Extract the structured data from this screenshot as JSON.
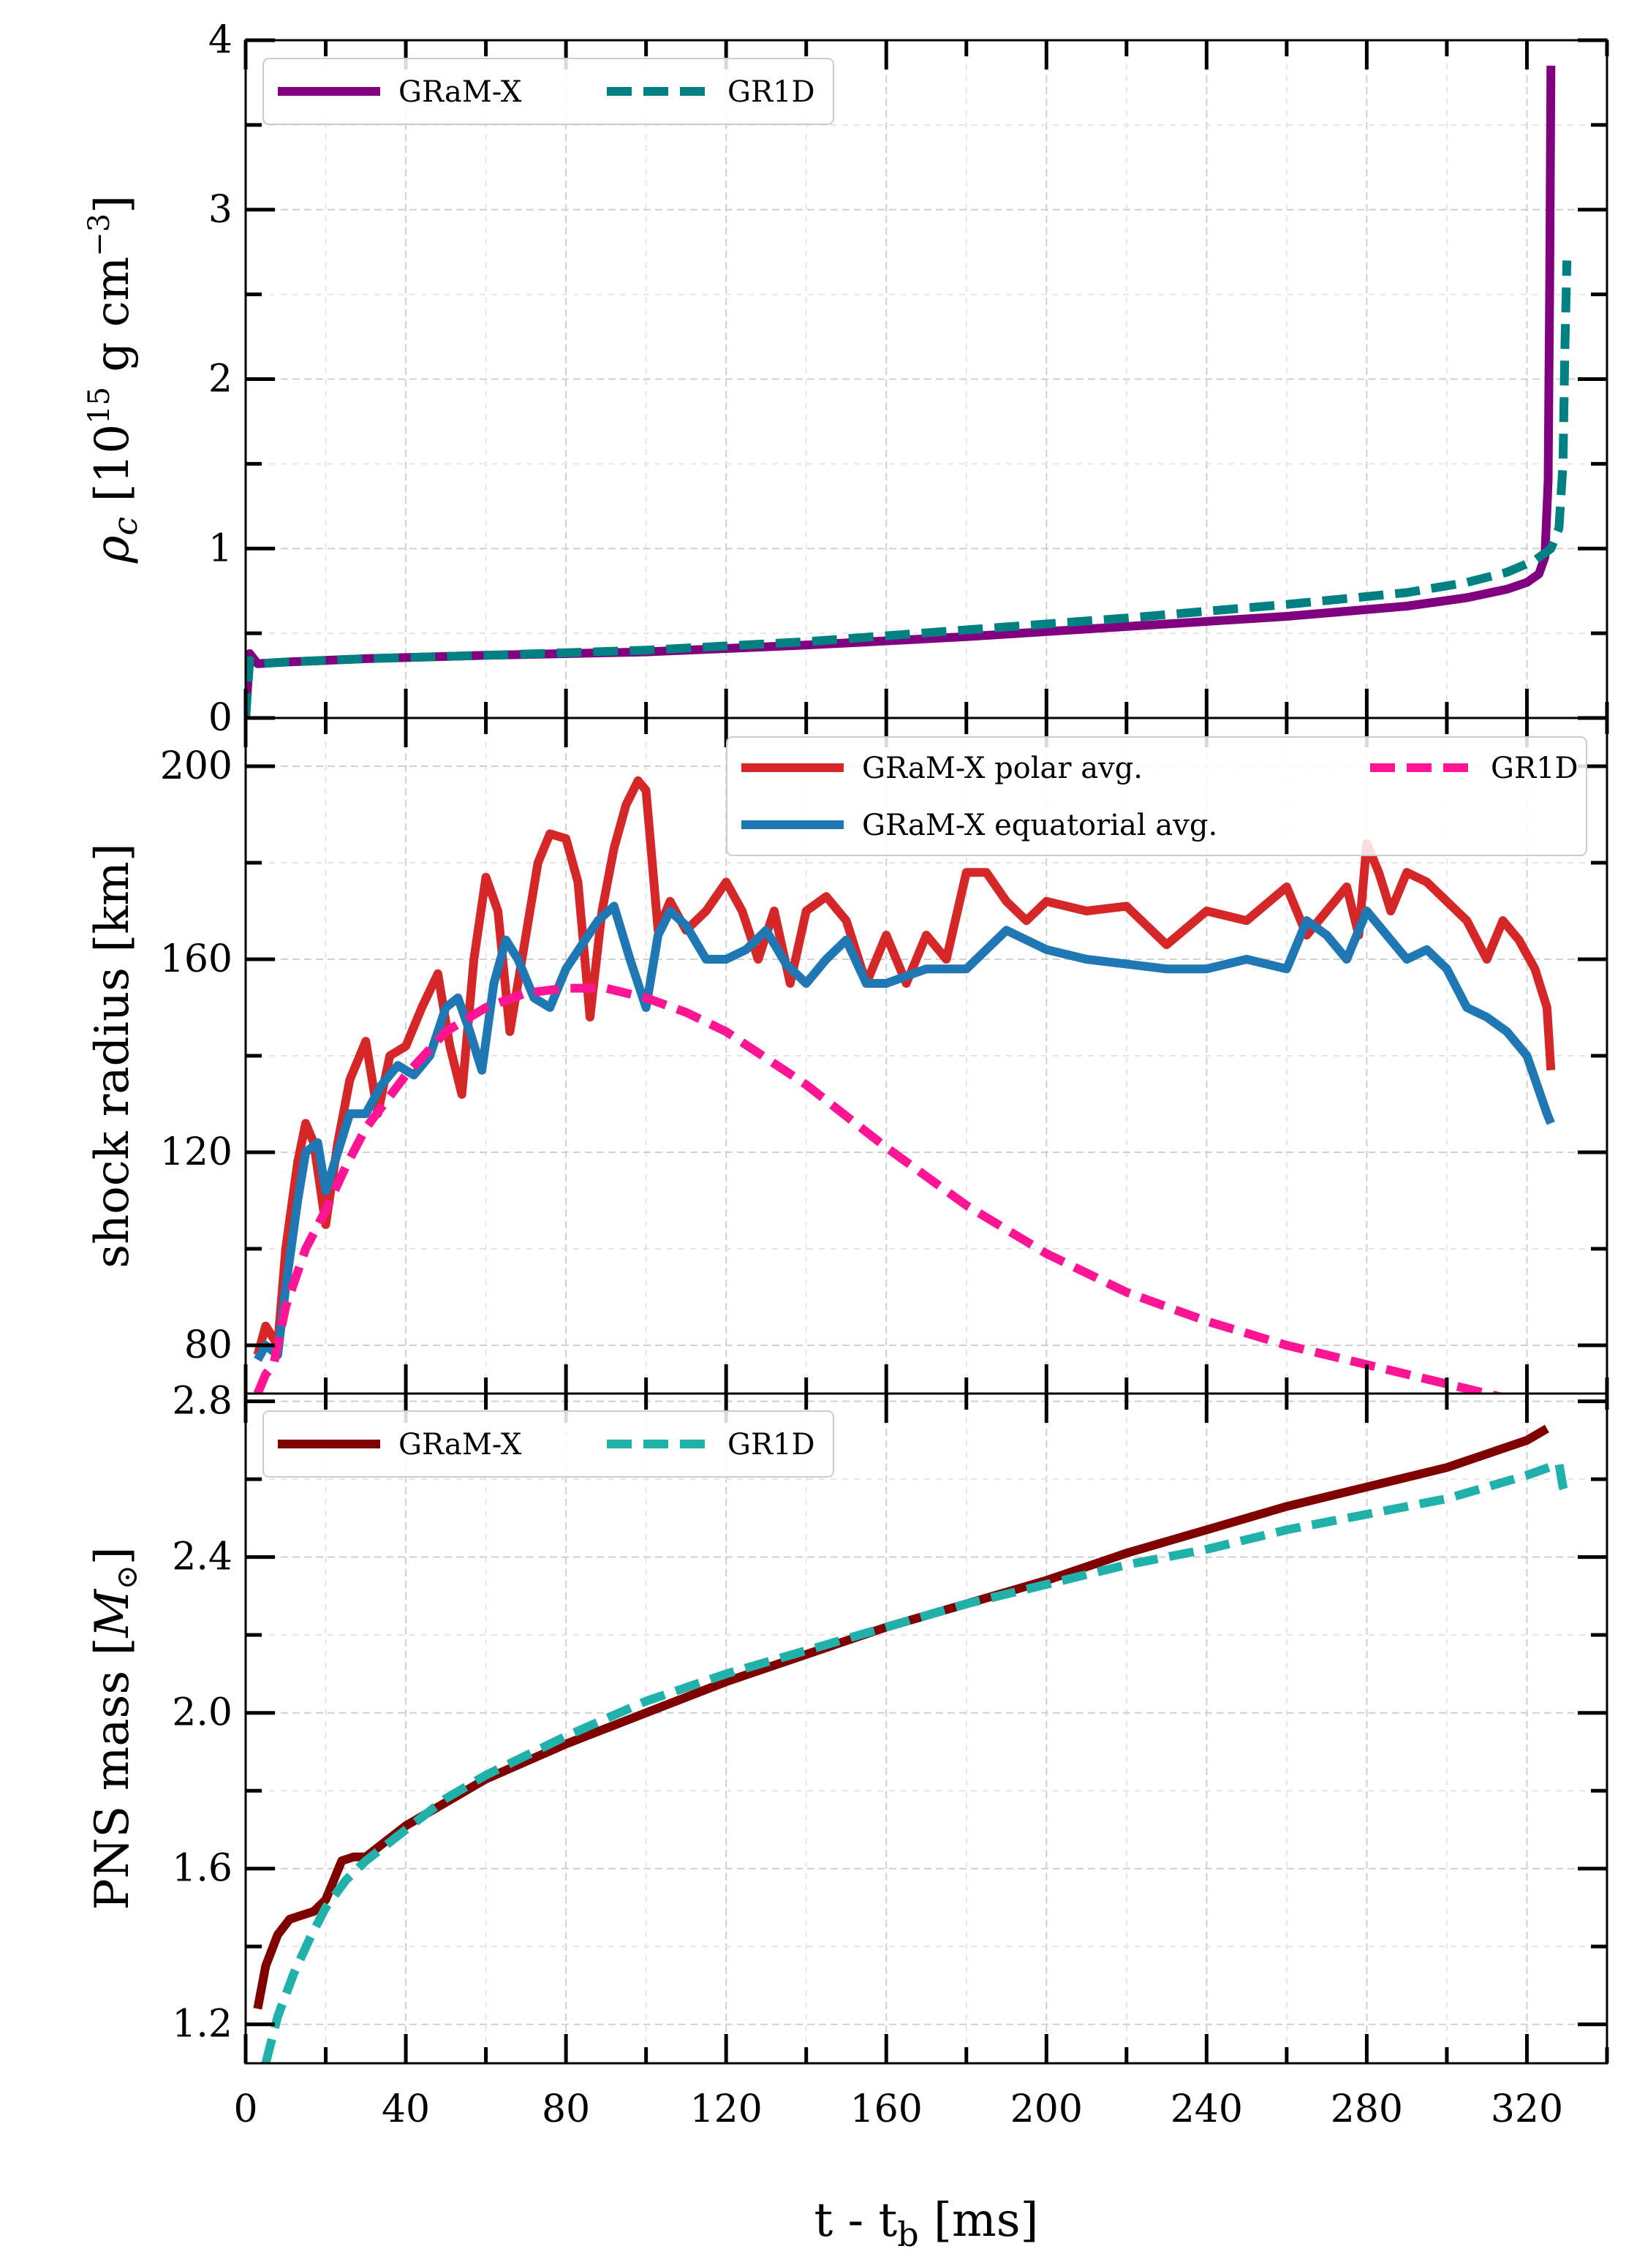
{
  "chart_data": [
    {
      "type": "line",
      "ylabel": "ρ_c [10^15 g cm^-3]",
      "ylim": [
        0,
        4
      ],
      "xlim": [
        0,
        340
      ],
      "yticks": [
        0,
        1,
        2,
        3,
        4
      ],
      "ytick_labels": [
        "0",
        "1",
        "2",
        "3",
        "4"
      ],
      "grid": true,
      "legend_position": "top-left",
      "series": [
        {
          "name": "GRaM-X",
          "color": "#800080",
          "style": "solid",
          "x": [
            0,
            1,
            3,
            10,
            30,
            60,
            100,
            140,
            180,
            220,
            260,
            290,
            305,
            315,
            320,
            323,
            324.5,
            325.3,
            325.7,
            326
          ],
          "y": [
            0.0,
            0.38,
            0.32,
            0.33,
            0.35,
            0.37,
            0.39,
            0.43,
            0.48,
            0.54,
            0.6,
            0.66,
            0.71,
            0.76,
            0.8,
            0.85,
            0.95,
            1.4,
            2.6,
            3.85
          ]
        },
        {
          "name": "GR1D",
          "color": "#008080",
          "style": "dashed",
          "x": [
            0,
            1,
            3,
            10,
            30,
            60,
            100,
            140,
            180,
            220,
            260,
            290,
            305,
            315,
            322,
            326,
            328,
            329,
            329.5,
            330
          ],
          "y": [
            0.0,
            0.34,
            0.32,
            0.33,
            0.35,
            0.37,
            0.4,
            0.45,
            0.52,
            0.59,
            0.67,
            0.74,
            0.8,
            0.86,
            0.93,
            1.0,
            1.12,
            1.5,
            2.2,
            2.7
          ]
        }
      ]
    },
    {
      "type": "line",
      "ylabel": "shock radius [km]",
      "ylim": [
        70,
        210
      ],
      "xlim": [
        0,
        340
      ],
      "yticks": [
        80,
        120,
        160,
        200
      ],
      "ytick_labels": [
        "80",
        "120",
        "160",
        "200"
      ],
      "grid": true,
      "legend_position": "top-right",
      "series": [
        {
          "name": "GRaM-X polar avg.",
          "color": "#d62728",
          "style": "solid",
          "x": [
            3,
            5,
            8,
            10,
            13,
            15,
            17,
            20,
            23,
            26,
            30,
            33,
            36,
            40,
            44,
            48,
            51,
            54,
            57,
            60,
            63,
            66,
            70,
            73,
            76,
            80,
            83,
            86,
            89,
            92,
            95,
            98,
            100,
            103,
            106,
            110,
            115,
            120,
            124,
            128,
            132,
            136,
            140,
            145,
            150,
            155,
            160,
            165,
            170,
            175,
            180,
            185,
            190,
            195,
            200,
            210,
            220,
            230,
            240,
            250,
            260,
            265,
            270,
            275,
            278,
            280,
            283,
            286,
            290,
            295,
            300,
            305,
            310,
            314,
            318,
            322,
            325,
            326
          ],
          "y": [
            78,
            84,
            80,
            100,
            118,
            126,
            122,
            105,
            122,
            135,
            143,
            128,
            140,
            142,
            150,
            157,
            142,
            132,
            160,
            177,
            170,
            145,
            165,
            180,
            186,
            185,
            176,
            148,
            170,
            183,
            192,
            197,
            195,
            166,
            172,
            166,
            170,
            176,
            170,
            160,
            170,
            155,
            170,
            173,
            168,
            155,
            165,
            155,
            165,
            160,
            178,
            178,
            172,
            168,
            172,
            170,
            171,
            163,
            170,
            168,
            175,
            165,
            170,
            175,
            165,
            184,
            178,
            170,
            178,
            176,
            172,
            168,
            160,
            168,
            164,
            158,
            150,
            137
          ]
        },
        {
          "name": "GRaM-X equatorial avg.",
          "color": "#1f77b4",
          "style": "solid",
          "x": [
            3,
            5,
            8,
            10,
            13,
            15,
            18,
            20,
            23,
            26,
            30,
            34,
            38,
            42,
            46,
            50,
            53,
            56,
            59,
            62,
            65,
            68,
            72,
            76,
            80,
            84,
            88,
            92,
            96,
            100,
            103,
            106,
            110,
            115,
            120,
            125,
            130,
            135,
            140,
            145,
            150,
            155,
            160,
            170,
            180,
            190,
            200,
            210,
            220,
            230,
            240,
            250,
            260,
            265,
            270,
            275,
            280,
            285,
            290,
            295,
            300,
            305,
            310,
            315,
            320,
            325,
            326
          ],
          "y": [
            77,
            80,
            78,
            92,
            110,
            120,
            122,
            112,
            120,
            128,
            128,
            134,
            138,
            136,
            140,
            150,
            152,
            145,
            137,
            155,
            164,
            160,
            152,
            150,
            158,
            163,
            168,
            171,
            160,
            150,
            165,
            170,
            167,
            160,
            160,
            162,
            166,
            159,
            155,
            160,
            164,
            155,
            155,
            158,
            158,
            166,
            162,
            160,
            159,
            158,
            158,
            160,
            158,
            168,
            165,
            160,
            170,
            165,
            160,
            162,
            158,
            150,
            148,
            145,
            140,
            128,
            126
          ]
        },
        {
          "name": "GR1D",
          "color": "#ff1493",
          "style": "dashed",
          "x": [
            3,
            5,
            7,
            10,
            15,
            20,
            25,
            30,
            40,
            50,
            60,
            70,
            80,
            90,
            100,
            110,
            120,
            140,
            160,
            180,
            200,
            220,
            240,
            260,
            280,
            300,
            310,
            320
          ],
          "y": [
            70,
            74,
            76,
            88,
            100,
            108,
            117,
            125,
            136,
            145,
            150,
            153,
            154,
            154,
            152,
            149,
            145,
            134,
            121,
            109,
            99,
            91,
            85,
            80,
            76,
            72,
            70,
            68
          ]
        }
      ]
    },
    {
      "type": "line",
      "xlabel": "t - t_b [ms]",
      "ylabel": "PNS mass [M_⊙]",
      "ylim": [
        1.1,
        2.82
      ],
      "xlim": [
        0,
        340
      ],
      "yticks": [
        1.2,
        1.6,
        2.0,
        2.4,
        2.8
      ],
      "ytick_labels": [
        "1.2",
        "1.6",
        "2.0",
        "2.4",
        "2.8"
      ],
      "xticks": [
        0,
        40,
        80,
        120,
        160,
        200,
        240,
        280,
        320
      ],
      "xtick_labels": [
        "0",
        "40",
        "80",
        "120",
        "160",
        "200",
        "240",
        "280",
        "320"
      ],
      "grid": true,
      "legend_position": "top-left",
      "series": [
        {
          "name": "GRaM-X",
          "color": "#800000",
          "style": "solid",
          "x": [
            3,
            5,
            8,
            11,
            14,
            17,
            20,
            22,
            24,
            27,
            30,
            35,
            40,
            50,
            60,
            80,
            100,
            120,
            140,
            160,
            180,
            200,
            220,
            240,
            260,
            280,
            300,
            320,
            325
          ],
          "y": [
            1.24,
            1.35,
            1.43,
            1.47,
            1.48,
            1.49,
            1.52,
            1.57,
            1.62,
            1.63,
            1.63,
            1.67,
            1.71,
            1.77,
            1.83,
            1.92,
            2.0,
            2.08,
            2.15,
            2.22,
            2.28,
            2.34,
            2.41,
            2.47,
            2.53,
            2.58,
            2.63,
            2.7,
            2.73
          ]
        },
        {
          "name": "GR1D",
          "color": "#20b2aa",
          "style": "dashed",
          "x": [
            5,
            8,
            12,
            16,
            20,
            25,
            30,
            40,
            50,
            60,
            80,
            100,
            120,
            140,
            160,
            180,
            200,
            220,
            240,
            260,
            280,
            300,
            320,
            328,
            329,
            330
          ],
          "y": [
            1.1,
            1.22,
            1.33,
            1.42,
            1.5,
            1.57,
            1.62,
            1.7,
            1.78,
            1.84,
            1.94,
            2.03,
            2.1,
            2.16,
            2.22,
            2.28,
            2.33,
            2.38,
            2.42,
            2.47,
            2.51,
            2.55,
            2.61,
            2.64,
            2.58,
            2.55
          ]
        }
      ]
    }
  ]
}
